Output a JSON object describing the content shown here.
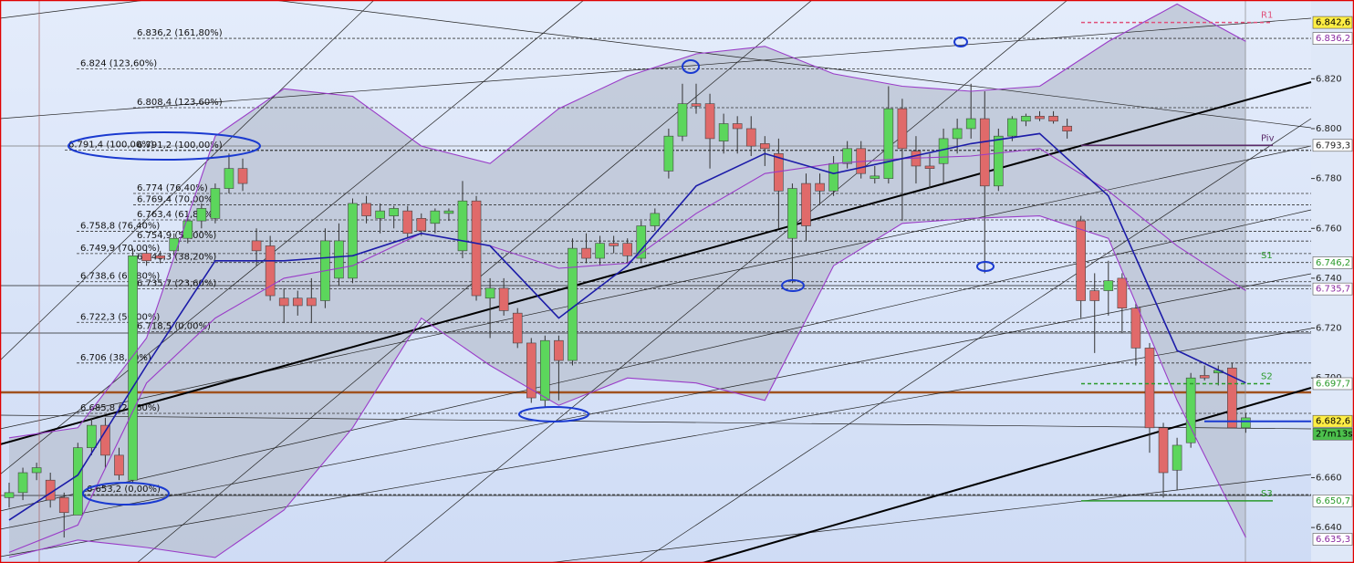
{
  "chart_data": {
    "type": "candlestick",
    "ylim": [
      6.6265,
      6.8516
    ],
    "yticks": [
      {
        "value": 6.64,
        "label": "6.640"
      },
      {
        "value": 6.66,
        "label": "6.660"
      },
      {
        "value": 6.7,
        "label": "6.700"
      },
      {
        "value": 6.72,
        "label": "6.720"
      },
      {
        "value": 6.74,
        "label": "6.740"
      },
      {
        "value": 6.76,
        "label": "6.760"
      },
      {
        "value": 6.78,
        "label": "6.780"
      },
      {
        "value": 6.8,
        "label": "6.800"
      },
      {
        "value": 6.82,
        "label": "6.820"
      }
    ],
    "up_color": "#5cd65c",
    "down_color": "#e06a6a",
    "open": [
      6.652,
      6.654,
      6.662,
      6.659,
      6.652,
      6.645,
      6.672,
      6.681,
      6.669,
      6.659,
      6.75,
      6.749,
      6.751,
      6.756,
      6.763,
      6.764,
      6.776,
      6.784,
      6.755,
      6.753,
      6.732,
      6.732,
      6.732,
      6.731,
      6.74,
      6.74,
      6.77,
      6.764,
      6.765,
      6.767,
      6.764,
      6.762,
      6.766,
      6.751,
      6.771,
      6.732,
      6.736,
      6.726,
      6.714,
      6.691,
      6.715,
      6.707,
      6.752,
      6.748,
      6.754,
      6.754,
      6.748,
      6.761,
      6.783,
      6.797,
      6.81,
      6.81,
      6.795,
      6.802,
      6.8,
      6.794,
      6.79,
      6.756,
      6.778,
      6.778,
      6.775,
      6.786,
      6.792,
      6.78,
      6.78,
      6.808,
      6.791,
      6.785,
      6.786,
      6.796,
      6.8,
      6.804,
      6.777,
      6.797,
      6.803,
      6.805,
      6.805,
      6.801,
      6.763,
      6.735,
      6.735,
      6.74,
      6.728,
      6.712,
      6.68,
      6.663,
      6.674,
      6.701,
      6.702,
      6.704,
      6.68
    ],
    "high": [
      6.658,
      6.664,
      6.666,
      6.662,
      6.654,
      6.674,
      6.684,
      6.684,
      6.672,
      6.752,
      6.752,
      6.751,
      6.758,
      6.765,
      6.77,
      6.778,
      6.79,
      6.788,
      6.76,
      6.757,
      6.736,
      6.735,
      6.74,
      6.76,
      6.762,
      6.772,
      6.773,
      6.77,
      6.769,
      6.769,
      6.766,
      6.768,
      6.768,
      6.779,
      6.773,
      6.74,
      6.74,
      6.728,
      6.716,
      6.717,
      6.717,
      6.756,
      6.758,
      6.757,
      6.757,
      6.756,
      6.763,
      6.768,
      6.8,
      6.818,
      6.818,
      6.814,
      6.806,
      6.805,
      6.805,
      6.797,
      6.796,
      6.778,
      6.782,
      6.782,
      6.789,
      6.795,
      6.795,
      6.785,
      6.817,
      6.812,
      6.797,
      6.79,
      6.8,
      6.804,
      6.818,
      6.815,
      6.8,
      6.805,
      6.806,
      6.807,
      6.807,
      6.804,
      6.765,
      6.742,
      6.747,
      6.742,
      6.73,
      6.714,
      6.682,
      6.676,
      6.702,
      6.705,
      6.705,
      6.706,
      6.686
    ],
    "low": [
      6.648,
      6.651,
      6.659,
      6.648,
      6.636,
      6.645,
      6.669,
      6.664,
      6.659,
      6.658,
      6.745,
      6.746,
      6.749,
      6.754,
      6.76,
      6.762,
      6.774,
      6.775,
      6.745,
      6.731,
      6.722,
      6.725,
      6.722,
      6.728,
      6.737,
      6.738,
      6.762,
      6.758,
      6.76,
      6.756,
      6.757,
      6.758,
      6.763,
      6.748,
      6.731,
      6.716,
      6.725,
      6.712,
      6.69,
      6.688,
      6.691,
      6.705,
      6.746,
      6.745,
      6.75,
      6.746,
      6.746,
      6.759,
      6.78,
      6.795,
      6.806,
      6.784,
      6.79,
      6.79,
      6.789,
      6.785,
      6.76,
      6.738,
      6.755,
      6.77,
      6.773,
      6.784,
      6.78,
      6.778,
      6.778,
      6.763,
      6.778,
      6.776,
      6.778,
      6.79,
      6.796,
      6.742,
      6.775,
      6.795,
      6.801,
      6.803,
      6.802,
      6.796,
      6.724,
      6.71,
      6.725,
      6.718,
      6.705,
      6.67,
      6.652,
      6.655,
      6.672,
      6.699,
      6.697,
      6.68,
      6.678
    ],
    "close": [
      6.654,
      6.662,
      6.664,
      6.651,
      6.646,
      6.672,
      6.681,
      6.669,
      6.661,
      6.749,
      6.747,
      6.748,
      6.756,
      6.763,
      6.768,
      6.776,
      6.784,
      6.778,
      6.751,
      6.733,
      6.729,
      6.729,
      6.729,
      6.755,
      6.755,
      6.77,
      6.765,
      6.767,
      6.768,
      6.758,
      6.759,
      6.767,
      6.767,
      6.771,
      6.733,
      6.736,
      6.727,
      6.714,
      6.692,
      6.715,
      6.707,
      6.752,
      6.748,
      6.754,
      6.753,
      6.749,
      6.761,
      6.766,
      6.797,
      6.81,
      6.809,
      6.796,
      6.802,
      6.8,
      6.793,
      6.792,
      6.775,
      6.776,
      6.761,
      6.775,
      6.786,
      6.792,
      6.782,
      6.781,
      6.808,
      6.792,
      6.785,
      6.784,
      6.796,
      6.8,
      6.804,
      6.777,
      6.797,
      6.804,
      6.805,
      6.804,
      6.803,
      6.799,
      6.731,
      6.731,
      6.739,
      6.728,
      6.712,
      6.68,
      6.662,
      6.673,
      6.7,
      6.7,
      6.703,
      6.68,
      6.684
    ],
    "band_color": "#b9c1d2",
    "series": [
      {
        "color": "#9a3cc8",
        "x": [
          0,
          5,
          10,
          15,
          20,
          25,
          30,
          35,
          40,
          45,
          50,
          55,
          60,
          65,
          70,
          75,
          80,
          85,
          90
        ],
        "values": [
          6.676,
          6.68,
          6.716,
          6.797,
          6.816,
          6.813,
          6.793,
          6.786,
          6.808,
          6.821,
          6.83,
          6.833,
          6.822,
          6.817,
          6.815,
          6.817,
          6.835,
          6.85,
          6.835
        ]
      },
      {
        "color": "#9a3cc8",
        "x": [
          0,
          5,
          10,
          15,
          20,
          25,
          30,
          35,
          40,
          45,
          50,
          55,
          60,
          65,
          70,
          75,
          80,
          85,
          90
        ],
        "values": [
          6.628,
          6.635,
          6.632,
          6.628,
          6.647,
          6.68,
          6.724,
          6.705,
          6.689,
          6.7,
          6.698,
          6.691,
          6.745,
          6.762,
          6.764,
          6.765,
          6.756,
          6.691,
          6.636
        ]
      },
      {
        "color": "#9a3cc8",
        "x": [
          0,
          5,
          10,
          15,
          20,
          25,
          30,
          35,
          40,
          45,
          50,
          55,
          60,
          65,
          70,
          75,
          80,
          85,
          90
        ],
        "values": [
          6.63,
          6.641,
          6.698,
          6.724,
          6.74,
          6.745,
          6.758,
          6.753,
          6.744,
          6.746,
          6.766,
          6.782,
          6.786,
          6.788,
          6.789,
          6.792,
          6.775,
          6.753,
          6.735
        ]
      },
      {
        "color": "#1c1ca8",
        "x": [
          0,
          5,
          10,
          15,
          20,
          25,
          30,
          35,
          40,
          45,
          50,
          55,
          60,
          65,
          70,
          75,
          80,
          85,
          90
        ],
        "values": [
          6.643,
          6.661,
          6.705,
          6.747,
          6.747,
          6.749,
          6.758,
          6.753,
          6.724,
          6.745,
          6.777,
          6.79,
          6.782,
          6.788,
          6.794,
          6.798,
          6.773,
          6.711,
          6.698
        ]
      }
    ],
    "fib_levels": [
      {
        "value": 6.8362,
        "label": "6.836,2 (161,80%)"
      },
      {
        "value": 6.824,
        "label": "6.824 (123,60%)"
      },
      {
        "value": 6.8084,
        "label": "6.808,4 (123,60%)"
      },
      {
        "value": 6.7914,
        "label": "6.791,4 (100,00%)"
      },
      {
        "value": 6.7912,
        "label": "6.791,2 (100,00%)"
      },
      {
        "value": 6.774,
        "label": "6.774 (76,40%)"
      },
      {
        "value": 6.7694,
        "label": "6.769,4 (70,00%)"
      },
      {
        "value": 6.7634,
        "label": "6.763,4 (61,80%)"
      },
      {
        "value": 6.7588,
        "label": "6.758,8 (76,40%)"
      },
      {
        "value": 6.7549,
        "label": "6.754,9 (50,00%)"
      },
      {
        "value": 6.7499,
        "label": "6.749,9 (70,00%)"
      },
      {
        "value": 6.7463,
        "label": "6.746,3 (38,20%)"
      },
      {
        "value": 6.7386,
        "label": "6.738,6 (61,80%)"
      },
      {
        "value": 6.7357,
        "label": "6.735,7 (23,60%)"
      },
      {
        "value": 6.7223,
        "label": "6.722,3 (50,00%)"
      },
      {
        "value": 6.7185,
        "label": "6.718,5 (0,00%)"
      },
      {
        "value": 6.706,
        "label": "6.706 (38,20%)"
      },
      {
        "value": 6.6858,
        "label": "6.685,8 (23,60%)"
      },
      {
        "value": 6.6532,
        "label": "6.653,2 (0,00%)"
      }
    ],
    "pivots": [
      {
        "label": "R1",
        "value": 6.8426,
        "color": "#e0507a",
        "line": "dashed"
      },
      {
        "label": "Piv",
        "value": 6.7933,
        "color": "#5a2a6a",
        "line": "solid"
      },
      {
        "label": "S1",
        "value": 6.7462,
        "color": "#2a9a2a",
        "line": "none"
      },
      {
        "label": "S2",
        "value": 6.6977,
        "color": "#2a9a2a",
        "line": "dashed"
      },
      {
        "label": "S3",
        "value": 6.6507,
        "color": "#2a9a2a",
        "line": "solid"
      }
    ],
    "price_tags": [
      {
        "value": 6.8426,
        "label": "6.842,6",
        "bg": "#ffee44",
        "color": "#000000"
      },
      {
        "value": 6.8362,
        "label": "6.836,2",
        "bg": "#ffffff",
        "color": "#8a2aa0"
      },
      {
        "value": 6.7933,
        "label": "6.793,3",
        "bg": "#ffffff",
        "color": "#222222"
      },
      {
        "value": 6.7462,
        "label": "6.746,2",
        "bg": "#ffffff",
        "color": "#2a9a2a"
      },
      {
        "value": 6.7357,
        "label": "6.735,7",
        "bg": "#ffffff",
        "color": "#8a2aa0"
      },
      {
        "value": 6.6977,
        "label": "6.697,7",
        "bg": "#ffffff",
        "color": "#2a9a2a"
      },
      {
        "value": 6.6826,
        "label": "6.682,6",
        "bg": "#ffee44",
        "color": "#000000"
      },
      {
        "value": 6.6507,
        "label": "6.650,7",
        "bg": "#ffffff",
        "color": "#2a9a2a"
      },
      {
        "value": 6.6353,
        "label": "6.635,3",
        "bg": "#ffffff",
        "color": "#8a2aa0"
      }
    ],
    "countdown": "27m13s",
    "price_line": 6.6826,
    "level_line": 6.6942
  }
}
